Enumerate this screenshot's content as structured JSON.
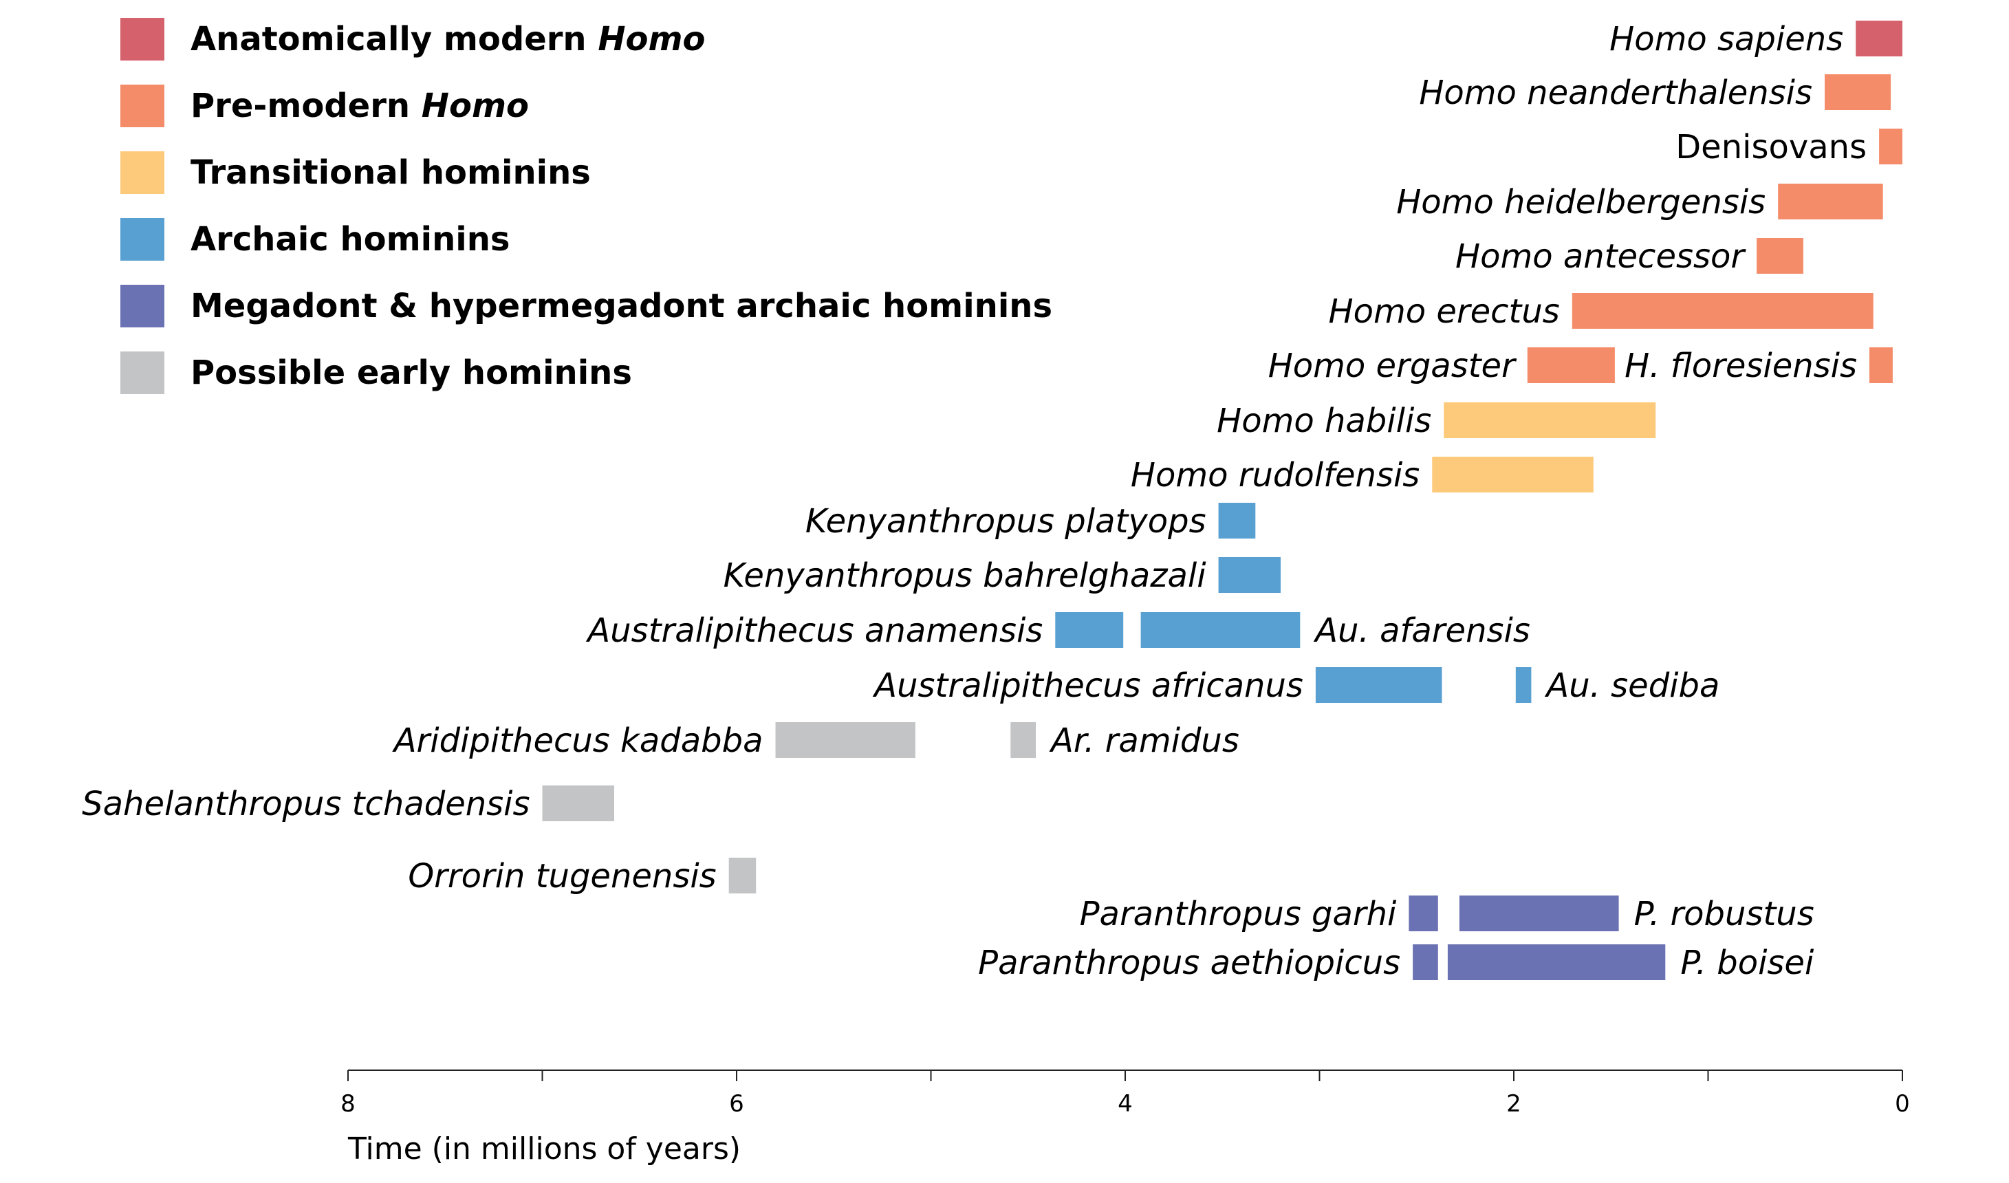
{
  "chart_data": {
    "type": "timeline",
    "xlabel": "Time (in millions of years)",
    "xlim": [
      8,
      0
    ],
    "x_ticks": [
      8,
      7,
      6,
      5,
      4,
      3,
      2,
      1,
      0
    ],
    "x_tick_labels": [
      {
        "value": 8,
        "label": "8"
      },
      {
        "value": 6,
        "label": "6"
      },
      {
        "value": 4,
        "label": "4"
      },
      {
        "value": 2,
        "label": "2"
      },
      {
        "value": 0,
        "label": "0"
      }
    ],
    "legend": [
      {
        "key": "anatomically_modern",
        "label": "Anatomically modern ",
        "label_em": "Homo",
        "color": "#d4616c"
      },
      {
        "key": "pre_modern",
        "label": "Pre-modern ",
        "label_em": "Homo",
        "color": "#f48c6a"
      },
      {
        "key": "transitional",
        "label": "Transitional hominins",
        "label_em": "",
        "color": "#fdc97b"
      },
      {
        "key": "archaic",
        "label": "Archaic hominins",
        "label_em": "",
        "color": "#589fd2"
      },
      {
        "key": "megadont",
        "label": "Megadont & hypermegadont archaic hominins",
        "label_em": "",
        "color": "#6b72b3"
      },
      {
        "key": "early",
        "label": "Possible early hominins",
        "label_em": "",
        "color": "#c3c4c6"
      }
    ],
    "species": [
      {
        "name": "Homo sapiens",
        "group": "anatomically_modern",
        "start": 0.24,
        "end": 0.0,
        "label_side": "left",
        "italic": true
      },
      {
        "name": "Homo neanderthalensis",
        "group": "pre_modern",
        "start": 0.4,
        "end": 0.06,
        "label_side": "left",
        "italic": true
      },
      {
        "name": "Denisovans",
        "group": "pre_modern",
        "start": 0.12,
        "end": 0.0,
        "label_side": "left",
        "italic": false
      },
      {
        "name": "Homo heidelbergensis",
        "group": "pre_modern",
        "start": 0.64,
        "end": 0.1,
        "label_side": "left",
        "italic": true
      },
      {
        "name": "Homo antecessor",
        "group": "pre_modern",
        "start": 0.75,
        "end": 0.51,
        "label_side": "left",
        "italic": true
      },
      {
        "name": "Homo erectus",
        "group": "pre_modern",
        "start": 1.7,
        "end": 0.15,
        "label_side": "left",
        "italic": true
      },
      {
        "name": "Homo ergaster",
        "group": "pre_modern",
        "start": 1.93,
        "end": 1.48,
        "label_side": "left",
        "italic": true
      },
      {
        "name": "H. floresiensis",
        "group": "pre_modern",
        "start": 0.17,
        "end": 0.05,
        "label_side": "left",
        "italic": true
      },
      {
        "name": "Homo habilis",
        "group": "transitional",
        "start": 2.36,
        "end": 1.27,
        "label_side": "left",
        "italic": true
      },
      {
        "name": "Homo rudolfensis",
        "group": "transitional",
        "start": 2.42,
        "end": 1.59,
        "label_side": "left",
        "italic": true
      },
      {
        "name": "Kenyanthropus platyops",
        "group": "archaic",
        "start": 3.52,
        "end": 3.33,
        "label_side": "left",
        "italic": true
      },
      {
        "name": "Kenyanthropus bahrelghazali",
        "group": "archaic",
        "start": 3.52,
        "end": 3.2,
        "label_side": "left",
        "italic": true
      },
      {
        "name": "Australipithecus anamensis",
        "group": "archaic",
        "start": 4.36,
        "end": 4.01,
        "label_side": "left",
        "italic": true
      },
      {
        "name": "Au. afarensis",
        "group": "archaic",
        "start": 3.92,
        "end": 3.1,
        "label_side": "right",
        "italic": true
      },
      {
        "name": "Australipithecus africanus",
        "group": "archaic",
        "start": 3.02,
        "end": 2.37,
        "label_side": "left",
        "italic": true
      },
      {
        "name": "Au. sediba",
        "group": "archaic",
        "start": 1.99,
        "end": 1.91,
        "label_side": "right",
        "italic": true
      },
      {
        "name": "Aridipithecus kadabba",
        "group": "early",
        "start": 5.8,
        "end": 5.08,
        "label_side": "left",
        "italic": true
      },
      {
        "name": "Ar. ramidus",
        "group": "early",
        "start": 4.59,
        "end": 4.46,
        "label_side": "right",
        "italic": true
      },
      {
        "name": "Sahelanthropus tchadensis",
        "group": "early",
        "start": 7.0,
        "end": 6.63,
        "label_side": "left",
        "italic": true
      },
      {
        "name": "Orrorin tugenensis",
        "group": "early",
        "start": 6.04,
        "end": 5.9,
        "label_side": "left",
        "italic": true
      },
      {
        "name": "Paranthropus garhi",
        "group": "megadont",
        "start": 2.54,
        "end": 2.39,
        "label_side": "left",
        "italic": true
      },
      {
        "name": "P. robustus",
        "group": "megadont",
        "start": 2.28,
        "end": 1.46,
        "label_side": "right",
        "italic": true
      },
      {
        "name": "Paranthropus aethiopicus",
        "group": "megadont",
        "start": 2.52,
        "end": 2.39,
        "label_side": "left",
        "italic": true
      },
      {
        "name": "P. boisei",
        "group": "megadont",
        "start": 2.34,
        "end": 1.22,
        "label_side": "right",
        "italic": true
      }
    ]
  }
}
